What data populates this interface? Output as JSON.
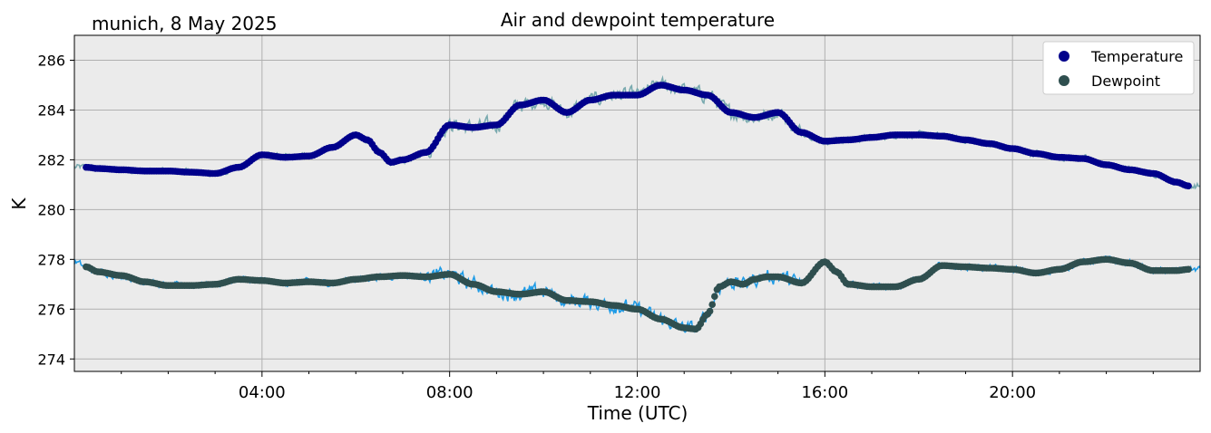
{
  "header": {
    "location_date": "munich, 8 May 2025",
    "title": "Air and dewpoint temperature"
  },
  "chart_data": {
    "type": "line",
    "title": "Air and dewpoint temperature",
    "subtitle": "munich, 8 May 2025",
    "xlabel": "Time (UTC)",
    "ylabel": "K",
    "xlim": [
      "00:00",
      "24:00"
    ],
    "ylim": [
      273.5,
      287
    ],
    "x_ticks": [
      "04:00",
      "08:00",
      "12:00",
      "16:00",
      "20:00"
    ],
    "y_ticks": [
      "274",
      "276",
      "278",
      "280",
      "282",
      "284",
      "286"
    ],
    "grid": true,
    "legend_position": "top-right",
    "background_color": "#ebebeb",
    "series": [
      {
        "name": "Temperature",
        "style": "smoothed-dots",
        "color": "#00008b",
        "raw_color": "#7aaaaf",
        "x_hours": [
          0.25,
          0.5,
          1,
          1.5,
          2,
          2.5,
          3,
          3.5,
          4,
          4.5,
          5,
          5.5,
          6,
          6.25,
          6.5,
          6.75,
          7,
          7.5,
          8,
          8.5,
          9,
          9.5,
          10,
          10.5,
          11,
          11.5,
          12,
          12.5,
          13,
          13.5,
          14,
          14.5,
          15,
          15.5,
          16,
          16.5,
          17,
          17.5,
          18,
          18.5,
          19,
          19.5,
          20,
          20.5,
          21,
          21.5,
          22,
          22.5,
          23,
          23.5,
          23.75
        ],
        "values": [
          281.7,
          281.65,
          281.6,
          281.55,
          281.55,
          281.5,
          281.45,
          281.7,
          282.2,
          282.1,
          282.15,
          282.5,
          283.0,
          282.8,
          282.3,
          281.9,
          282.0,
          282.3,
          283.4,
          283.3,
          283.4,
          284.2,
          284.4,
          283.9,
          284.4,
          284.6,
          284.6,
          285.0,
          284.8,
          284.6,
          283.9,
          283.7,
          283.9,
          283.1,
          282.75,
          282.8,
          282.9,
          283.0,
          283.0,
          282.95,
          282.8,
          282.65,
          282.45,
          282.25,
          282.1,
          282.05,
          281.8,
          281.6,
          281.45,
          281.1,
          280.95
        ]
      },
      {
        "name": "Dewpoint",
        "style": "smoothed-dots",
        "color": "#2f4f4f",
        "raw_color": "#1e9be6",
        "x_hours": [
          0,
          0.25,
          0.5,
          1,
          1.5,
          2,
          2.5,
          3,
          3.5,
          4,
          4.5,
          5,
          5.5,
          6,
          6.5,
          7,
          7.5,
          8,
          8.5,
          9,
          9.5,
          10,
          10.5,
          11,
          11.5,
          12,
          12.5,
          13,
          13.25,
          13.5,
          13.75,
          14,
          14.25,
          14.5,
          14.75,
          15,
          15.5,
          16,
          16.25,
          16.5,
          17,
          17.5,
          18,
          18.5,
          19,
          19.5,
          20,
          20.5,
          21,
          21.5,
          22,
          22.5,
          23,
          23.5,
          23.75
        ],
        "values": [
          277.9,
          277.7,
          277.5,
          277.35,
          277.1,
          276.95,
          276.95,
          277.0,
          277.2,
          277.15,
          277.05,
          277.1,
          277.05,
          277.2,
          277.3,
          277.35,
          277.3,
          277.4,
          277.0,
          276.7,
          276.6,
          276.7,
          276.35,
          276.3,
          276.15,
          276.0,
          275.6,
          275.25,
          275.2,
          275.8,
          276.9,
          277.1,
          277.0,
          277.2,
          277.3,
          277.3,
          277.05,
          277.9,
          277.5,
          277.0,
          276.9,
          276.9,
          277.2,
          277.75,
          277.7,
          277.65,
          277.6,
          277.45,
          277.6,
          277.9,
          278.0,
          277.85,
          277.55,
          277.55,
          277.6
        ]
      }
    ]
  }
}
